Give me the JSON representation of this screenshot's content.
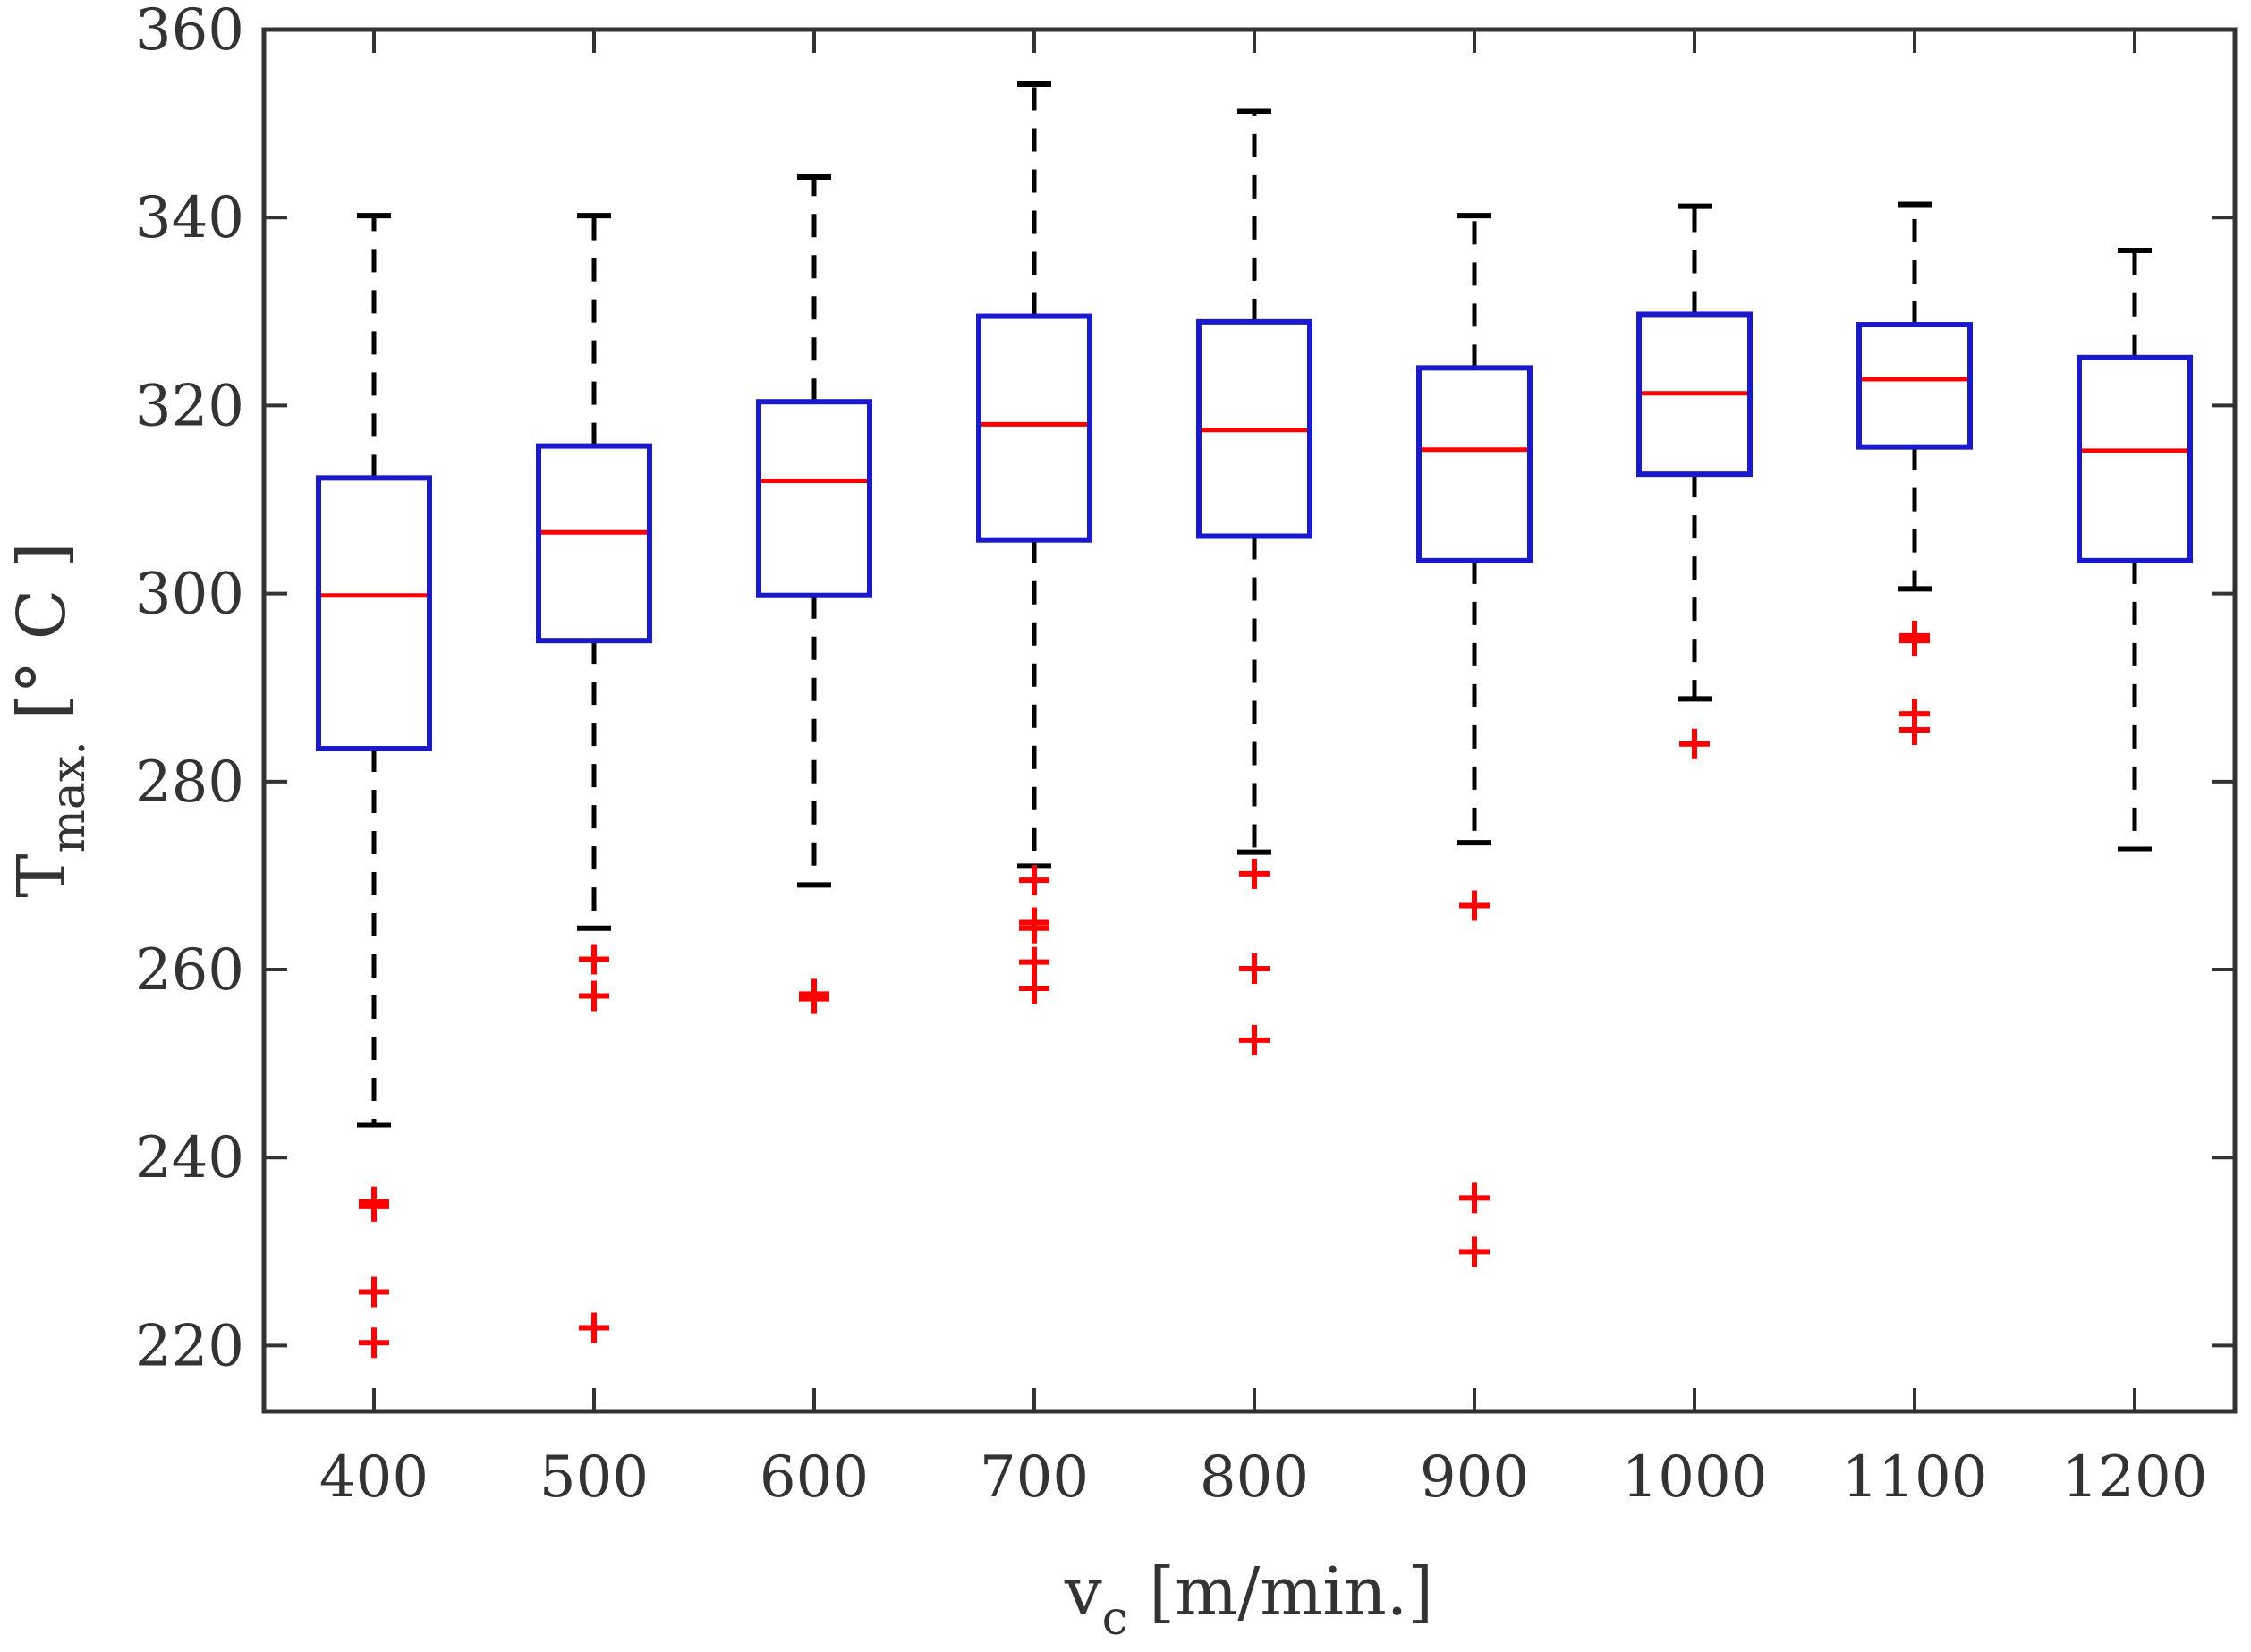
{
  "chart_data": {
    "type": "box",
    "title": "",
    "xlabel": {
      "main": "v",
      "sub": "c",
      "rest": " [m/min.]"
    },
    "ylabel": {
      "main": "T",
      "sub": "max.",
      "rest": " [° C ]"
    },
    "ylim": [
      213,
      360
    ],
    "yticks": [
      220,
      240,
      260,
      280,
      300,
      320,
      340,
      360
    ],
    "categories": [
      "400",
      "500",
      "600",
      "700",
      "800",
      "900",
      "1000",
      "1100",
      "1200"
    ],
    "boxes": [
      {
        "whisker_low": 243.5,
        "q1": 283.5,
        "median": 299.8,
        "q3": 312.3,
        "whisker_high": 340.2,
        "outliers": [
          235.3,
          234.8,
          225.7,
          220.3
        ]
      },
      {
        "whisker_low": 264.4,
        "q1": 295.0,
        "median": 306.5,
        "q3": 315.7,
        "whisker_high": 340.2,
        "outliers": [
          261.1,
          257.2,
          221.9
        ]
      },
      {
        "whisker_low": 269.0,
        "q1": 299.8,
        "median": 312.0,
        "q3": 320.4,
        "whisker_high": 344.3,
        "outliers": [
          257.4,
          256.9
        ]
      },
      {
        "whisker_low": 271.0,
        "q1": 305.7,
        "median": 318.0,
        "q3": 329.5,
        "whisker_high": 354.2,
        "outliers": [
          269.5,
          265.0,
          264.4,
          260.8,
          258.0
        ]
      },
      {
        "whisker_low": 272.5,
        "q1": 306.1,
        "median": 317.4,
        "q3": 328.9,
        "whisker_high": 351.3,
        "outliers": [
          270.2,
          260.1,
          252.5
        ]
      },
      {
        "whisker_low": 273.5,
        "q1": 303.5,
        "median": 315.3,
        "q3": 324.0,
        "whisker_high": 340.2,
        "outliers": [
          266.8,
          235.7,
          230.0
        ]
      },
      {
        "whisker_low": 288.8,
        "q1": 312.7,
        "median": 321.3,
        "q3": 329.7,
        "whisker_high": 341.2,
        "outliers": [
          284.0
        ]
      },
      {
        "whisker_low": 300.5,
        "q1": 315.6,
        "median": 322.8,
        "q3": 328.6,
        "whisker_high": 341.4,
        "outliers": [
          295.5,
          295.0,
          287.2,
          285.5
        ]
      },
      {
        "whisker_low": 272.8,
        "q1": 303.5,
        "median": 315.2,
        "q3": 325.1,
        "whisker_high": 336.5,
        "outliers": []
      }
    ],
    "colors": {
      "box": "#1a1acc",
      "median": "#ff0000",
      "whisker": "#000000",
      "outlier": "#ff0000",
      "axis": "#333333"
    }
  }
}
